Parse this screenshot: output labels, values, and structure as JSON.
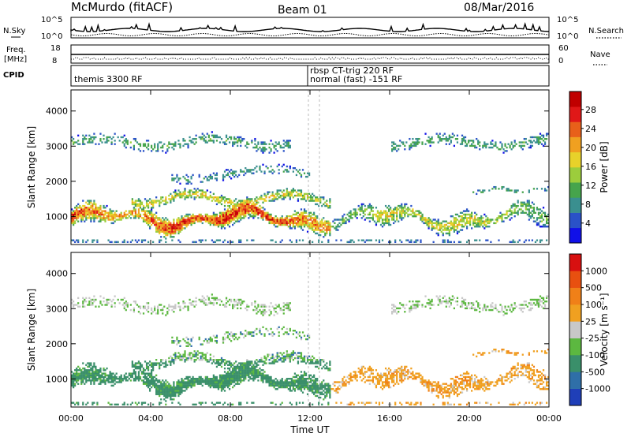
{
  "header": {
    "station": "McMurdo (fitACF)",
    "beam": "Beam 01",
    "date": "08/Mar/2016"
  },
  "top_panels": {
    "left_labels": {
      "nsky": "N.Sky",
      "freq_1": "Freq.",
      "freq_2": "[MHz]",
      "cpid": "CPID"
    },
    "right_labels": {
      "nsearch": "N.Search",
      "nave": "Nave"
    },
    "nsky_ticks": [
      "10^5",
      "10^0"
    ],
    "nsearch_ticks": [
      "10^5",
      "10^0"
    ],
    "freq_ticks": [
      "18",
      "8"
    ],
    "nave_ticks": [
      "60",
      "0"
    ],
    "cpid_text": [
      "themis 3300 RF",
      "rbsp CT-trig 220 RF",
      "normal (fast) -151 RF"
    ]
  },
  "chart_data": [
    {
      "type": "heatmap",
      "panel": "power",
      "ylabel": "Slant Range [km]",
      "y_ticks": [
        "1000",
        "2000",
        "3000",
        "4000"
      ],
      "ylim": [
        200,
        4600
      ],
      "colorbar": {
        "label": "Power [dB]",
        "ticks": [
          "4",
          "8",
          "12",
          "16",
          "20",
          "24",
          "28"
        ],
        "colors": [
          "#1010e8",
          "#2a52c8",
          "#3a8f8f",
          "#46a44c",
          "#9ccd3c",
          "#e8d22a",
          "#f0a020",
          "#e8601a",
          "#e01818",
          "#c00000"
        ]
      }
    },
    {
      "type": "heatmap",
      "panel": "velocity",
      "ylabel": "Slant Range [km]",
      "xlabel": "Time UT",
      "x_ticks": [
        "00:00",
        "04:00",
        "08:00",
        "12:00",
        "16:00",
        "20:00",
        "00:00"
      ],
      "y_ticks": [
        "1000",
        "2000",
        "3000",
        "4000"
      ],
      "ylim": [
        200,
        4600
      ],
      "colorbar": {
        "label": "Velocity [m s⁻¹]",
        "ticks": [
          "1000",
          "500",
          "100",
          "25",
          "-25",
          "-100",
          "-500",
          "-1000"
        ],
        "colors": [
          "#1f3fb8",
          "#2f6fa8",
          "#3a8f6a",
          "#5cb840",
          "#c8c8c8",
          "#f0a020",
          "#f08018",
          "#e85010",
          "#d81010"
        ]
      }
    }
  ]
}
